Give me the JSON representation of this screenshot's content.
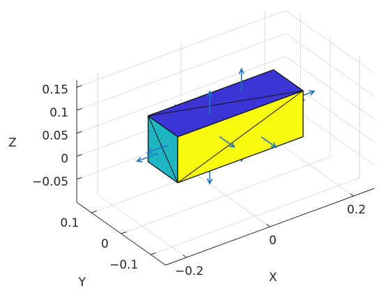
{
  "chart_data": {
    "type": "patch3d",
    "xlabel": "X",
    "ylabel": "Y",
    "zlabel": "Z",
    "xlim": [
      -0.25,
      0.25
    ],
    "ylim": [
      -0.15,
      0.15
    ],
    "zlim": [
      -0.1,
      0.165
    ],
    "xticks": [
      {
        "value": -0.2,
        "label": "−0.2"
      },
      0,
      0.2
    ],
    "yticks": [
      {
        "value": -0.1,
        "label": "−0.1"
      },
      0,
      0.1
    ],
    "zticks": [
      {
        "value": -0.05,
        "label": "−0.05"
      },
      0,
      0.05,
      0.1,
      0.15
    ],
    "grid": true,
    "faces": [
      {
        "color": "#1fb5c2",
        "vertices": [
          [
            -0.15,
            0.05,
            0.1
          ],
          [
            -0.15,
            0.05,
            0
          ],
          [
            -0.15,
            -0.05,
            0
          ],
          [
            -0.15,
            -0.05,
            0.1
          ]
        ]
      },
      {
        "color": "#f9fb10",
        "vertices": [
          [
            -0.15,
            -0.05,
            0
          ],
          [
            0.15,
            -0.05,
            0
          ],
          [
            0.15,
            -0.05,
            0.1
          ],
          [
            -0.15,
            -0.05,
            0.1
          ]
        ]
      },
      {
        "color": "#3b35d6",
        "vertices": [
          [
            -0.15,
            0.05,
            0.1
          ],
          [
            -0.15,
            -0.05,
            0.1
          ],
          [
            0.15,
            -0.05,
            0.1
          ],
          [
            0.15,
            0.05,
            0.1
          ]
        ]
      }
    ],
    "normals": {
      "color": "#1f75c0",
      "origins": [
        [
          0.05,
          0.017,
          0.1
        ],
        [
          -0.05,
          -0.017,
          0.1
        ],
        [
          0.05,
          0.017,
          0
        ],
        [
          -0.05,
          -0.017,
          0
        ],
        [
          0.05,
          -0.05,
          0.033
        ],
        [
          -0.05,
          -0.05,
          0.067
        ],
        [
          0.05,
          0.05,
          0.033
        ],
        [
          -0.05,
          0.05,
          0.067
        ],
        [
          -0.15,
          0.017,
          0.033
        ],
        [
          -0.15,
          -0.017,
          0.067
        ],
        [
          0.15,
          0.017,
          0.033
        ],
        [
          0.15,
          -0.017,
          0.067
        ]
      ],
      "vectors": [
        [
          0,
          0,
          0.05
        ],
        [
          0,
          0,
          0.05
        ],
        [
          0,
          0,
          -0.05
        ],
        [
          0,
          0,
          -0.05
        ],
        [
          0,
          -0.05,
          0
        ],
        [
          0,
          -0.05,
          0
        ],
        [
          0,
          0.05,
          0
        ],
        [
          0,
          0.05,
          0
        ],
        [
          -0.05,
          0,
          0
        ],
        [
          -0.05,
          0,
          0
        ],
        [
          0.05,
          0,
          0
        ],
        [
          0.05,
          0,
          0
        ]
      ]
    }
  }
}
